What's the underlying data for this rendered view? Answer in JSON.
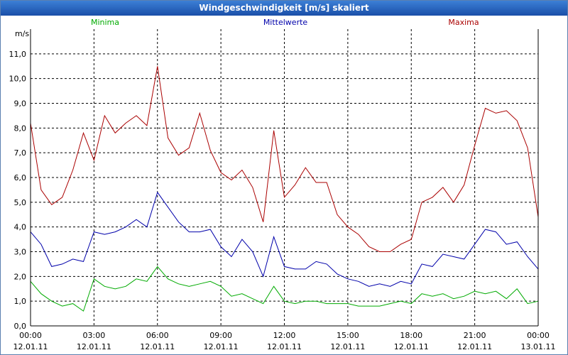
{
  "window": {
    "title": "Windgeschwindigkeit [m/s] skaliert"
  },
  "colors": {
    "minima": "#00aa00",
    "mittelwerte": "#0000aa",
    "maxima": "#aa0000",
    "grid": "#000000"
  },
  "chart_data": {
    "type": "line",
    "title": "Windgeschwindigkeit [m/s] skaliert",
    "ylabel": "m/s",
    "ylim": [
      0,
      12
    ],
    "grid": true,
    "legend_position": "top",
    "y_ticks": [
      "0,0",
      "1,0",
      "2,0",
      "3,0",
      "4,0",
      "5,0",
      "6,0",
      "7,0",
      "8,0",
      "9,0",
      "10,0",
      "11,0"
    ],
    "x_ticks": [
      {
        "time": "00:00",
        "date": "12.01.11"
      },
      {
        "time": "03:00",
        "date": "12.01.11"
      },
      {
        "time": "06:00",
        "date": "12.01.11"
      },
      {
        "time": "09:00",
        "date": "12.01.11"
      },
      {
        "time": "12:00",
        "date": "12.01.11"
      },
      {
        "time": "15:00",
        "date": "12.01.11"
      },
      {
        "time": "18:00",
        "date": "12.01.11"
      },
      {
        "time": "21:00",
        "date": "12.01.11"
      },
      {
        "time": "00:00",
        "date": "13.01.11"
      }
    ],
    "x": [
      "00:00",
      "00:30",
      "01:00",
      "01:30",
      "02:00",
      "02:30",
      "03:00",
      "03:30",
      "04:00",
      "04:30",
      "05:00",
      "05:30",
      "06:00",
      "06:30",
      "07:00",
      "07:30",
      "08:00",
      "08:30",
      "09:00",
      "09:30",
      "10:00",
      "10:30",
      "11:00",
      "11:30",
      "12:00",
      "12:30",
      "13:00",
      "13:30",
      "14:00",
      "14:30",
      "15:00",
      "15:30",
      "16:00",
      "16:30",
      "17:00",
      "17:30",
      "18:00",
      "18:30",
      "19:00",
      "19:30",
      "20:00",
      "20:30",
      "21:00",
      "21:30",
      "22:00",
      "22:30",
      "23:00",
      "23:30",
      "24:00"
    ],
    "series": [
      {
        "name": "Minima",
        "values": [
          1.8,
          1.3,
          1.0,
          0.8,
          0.9,
          0.6,
          1.9,
          1.6,
          1.5,
          1.6,
          1.9,
          1.8,
          2.4,
          1.9,
          1.7,
          1.6,
          1.7,
          1.8,
          1.6,
          1.2,
          1.3,
          1.1,
          0.9,
          1.6,
          1.0,
          0.9,
          1.0,
          1.0,
          0.9,
          0.9,
          0.9,
          0.8,
          0.8,
          0.8,
          0.9,
          1.0,
          0.9,
          1.3,
          1.2,
          1.3,
          1.1,
          1.2,
          1.4,
          1.3,
          1.4,
          1.1,
          1.5,
          0.9,
          1.0
        ]
      },
      {
        "name": "Mittelwerte",
        "values": [
          3.8,
          3.3,
          2.4,
          2.5,
          2.7,
          2.6,
          3.8,
          3.7,
          3.8,
          4.0,
          4.3,
          4.0,
          5.4,
          4.8,
          4.2,
          3.8,
          3.8,
          3.9,
          3.2,
          2.8,
          3.5,
          3.0,
          2.0,
          3.6,
          2.4,
          2.3,
          2.3,
          2.6,
          2.5,
          2.1,
          1.9,
          1.8,
          1.6,
          1.7,
          1.6,
          1.8,
          1.7,
          2.5,
          2.4,
          2.9,
          2.8,
          2.7,
          3.3,
          3.9,
          3.8,
          3.3,
          3.4,
          2.8,
          2.3
        ]
      },
      {
        "name": "Maxima",
        "values": [
          8.2,
          5.5,
          4.9,
          5.2,
          6.3,
          7.8,
          6.7,
          8.5,
          7.8,
          8.2,
          8.5,
          8.1,
          10.5,
          7.6,
          6.9,
          7.2,
          8.6,
          7.1,
          6.2,
          5.9,
          6.3,
          5.6,
          4.2,
          7.9,
          5.2,
          5.7,
          6.4,
          5.8,
          5.8,
          4.5,
          4.0,
          3.7,
          3.2,
          3.0,
          3.0,
          3.3,
          3.5,
          5.0,
          5.2,
          5.6,
          5.0,
          5.7,
          7.3,
          8.8,
          8.6,
          8.7,
          8.3,
          7.2,
          4.4
        ]
      }
    ]
  }
}
